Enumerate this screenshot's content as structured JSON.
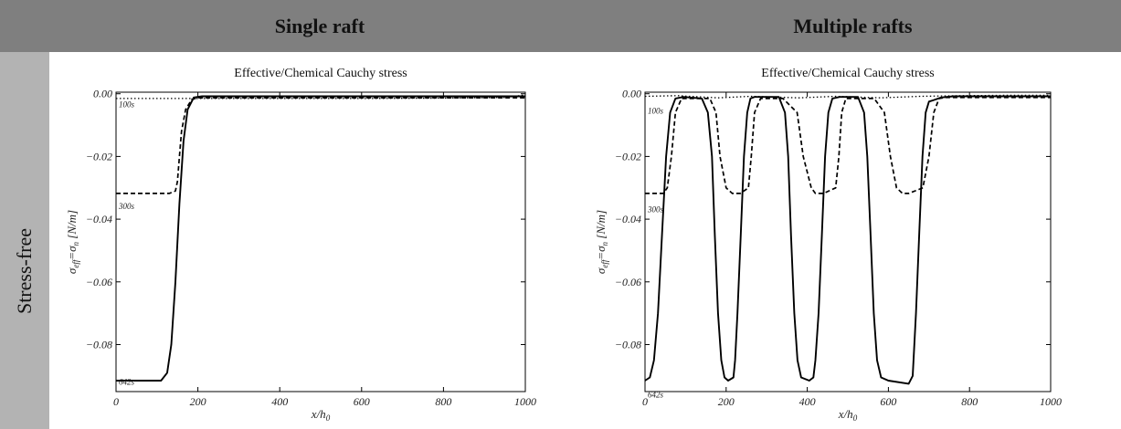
{
  "header": {
    "single_title": "Single raft",
    "multi_title": "Multiple rafts"
  },
  "row": {
    "label": "Stress-free"
  },
  "chart_data": [
    {
      "type": "line",
      "title": "Effective/Chemical Cauchy stress",
      "xlabel": "x/h",
      "xlabel_sub": "0",
      "ylabel": "σ",
      "ylabel_sub1": "eff",
      "ylabel_mid": "=σ",
      "ylabel_sub2": "n",
      "ylabel_unit": " [N/m]",
      "xlim": [
        0,
        1000
      ],
      "ylim": [
        -0.095,
        0.0005
      ],
      "xticks": [
        0,
        200,
        400,
        600,
        800,
        1000
      ],
      "xtick_labels": [
        "0",
        "200",
        "400",
        "600",
        "800",
        "1000"
      ],
      "yticks": [
        0.0,
        -0.02,
        -0.04,
        -0.06,
        -0.08
      ],
      "ytick_labels": [
        "0.00",
        "−0.02",
        "−0.04",
        "−0.06",
        "−0.08"
      ],
      "grid": false,
      "time_labels": [
        {
          "text": "100s",
          "y": -0.002
        },
        {
          "text": "300s",
          "y": -0.0345
        },
        {
          "text": "642s",
          "y": -0.0905
        }
      ],
      "series": [
        {
          "style": "dotted",
          "x": [
            0,
            200,
            400,
            600,
            800,
            950,
            975,
            990,
            1000
          ],
          "y": [
            -0.0015,
            -0.0015,
            -0.0015,
            -0.0015,
            -0.0014,
            -0.0012,
            -0.0008,
            -0.0005,
            -0.0004
          ]
        },
        {
          "style": "dashed",
          "x": [
            0,
            130,
            145,
            150,
            155,
            160,
            170,
            185,
            200,
            400,
            600,
            800,
            1000
          ],
          "y": [
            -0.0318,
            -0.0318,
            -0.031,
            -0.028,
            -0.02,
            -0.012,
            -0.005,
            -0.0018,
            -0.0013,
            -0.0013,
            -0.0013,
            -0.0013,
            -0.0013
          ]
        },
        {
          "style": "solid",
          "x": [
            0,
            110,
            125,
            135,
            145,
            155,
            165,
            175,
            190,
            210,
            400,
            600,
            800,
            1000
          ],
          "y": [
            -0.0915,
            -0.0915,
            -0.089,
            -0.08,
            -0.06,
            -0.035,
            -0.015,
            -0.005,
            -0.0012,
            -0.0008,
            -0.0008,
            -0.0008,
            -0.0008,
            -0.0008
          ]
        }
      ]
    },
    {
      "type": "line",
      "title": "Effective/Chemical Cauchy stress",
      "xlabel": "x/h",
      "xlabel_sub": "0",
      "ylabel": "σ",
      "ylabel_sub1": "eff",
      "ylabel_mid": "=σ",
      "ylabel_sub2": "n",
      "ylabel_unit": " [N/m]",
      "xlim": [
        0,
        1000
      ],
      "ylim": [
        -0.095,
        0.0005
      ],
      "xticks": [
        0,
        200,
        400,
        600,
        800,
        1000
      ],
      "xtick_labels": [
        "0",
        "200",
        "400",
        "600",
        "800",
        "1000"
      ],
      "yticks": [
        0.0,
        -0.02,
        -0.04,
        -0.06,
        -0.08
      ],
      "ytick_labels": [
        "0.00",
        "−0.02",
        "−0.04",
        "−0.06",
        "−0.08"
      ],
      "grid": false,
      "time_labels": [
        {
          "text": "100s",
          "y": -0.004
        },
        {
          "text": "300s",
          "y": -0.0355
        },
        {
          "text": "642s",
          "y": -0.0945
        }
      ],
      "series": [
        {
          "style": "dotted",
          "x": [
            0,
            80,
            180,
            260,
            380,
            470,
            580,
            680,
            780,
            900,
            1000
          ],
          "y": [
            -0.0008,
            -0.0006,
            -0.0013,
            -0.0008,
            -0.0013,
            -0.0008,
            -0.0013,
            -0.0008,
            -0.0006,
            -0.0005,
            -0.0005
          ]
        },
        {
          "style": "dashed",
          "x": [
            0,
            45,
            55,
            65,
            75,
            90,
            160,
            175,
            185,
            200,
            215,
            235,
            255,
            262,
            270,
            285,
            300,
            340,
            375,
            390,
            410,
            420,
            440,
            470,
            478,
            485,
            495,
            510,
            565,
            590,
            605,
            620,
            635,
            650,
            685,
            700,
            712,
            725,
            740,
            760,
            800,
            1000
          ],
          "y": [
            -0.0318,
            -0.0318,
            -0.03,
            -0.02,
            -0.006,
            -0.0015,
            -0.0015,
            -0.006,
            -0.02,
            -0.03,
            -0.0318,
            -0.0318,
            -0.03,
            -0.02,
            -0.006,
            -0.0015,
            -0.0015,
            -0.0015,
            -0.006,
            -0.02,
            -0.03,
            -0.0318,
            -0.0318,
            -0.03,
            -0.02,
            -0.006,
            -0.0015,
            -0.0015,
            -0.0015,
            -0.006,
            -0.02,
            -0.03,
            -0.0318,
            -0.0318,
            -0.03,
            -0.02,
            -0.006,
            -0.0015,
            -0.0012,
            -0.0012,
            -0.0012,
            -0.0012
          ]
        },
        {
          "style": "solid",
          "x": [
            0,
            12,
            22,
            32,
            42,
            52,
            62,
            75,
            95,
            140,
            155,
            165,
            172,
            180,
            188,
            196,
            205,
            218,
            222,
            228,
            236,
            244,
            252,
            260,
            270,
            285,
            330,
            345,
            353,
            360,
            368,
            376,
            385,
            405,
            415,
            420,
            428,
            436,
            444,
            452,
            462,
            480,
            525,
            540,
            548,
            556,
            564,
            572,
            582,
            600,
            650,
            660,
            668,
            676,
            684,
            692,
            700,
            712,
            730,
            760,
            1000
          ],
          "y": [
            -0.0915,
            -0.0905,
            -0.085,
            -0.07,
            -0.045,
            -0.02,
            -0.006,
            -0.0015,
            -0.001,
            -0.0015,
            -0.006,
            -0.02,
            -0.045,
            -0.07,
            -0.085,
            -0.0905,
            -0.0915,
            -0.0905,
            -0.085,
            -0.07,
            -0.045,
            -0.02,
            -0.006,
            -0.0015,
            -0.001,
            -0.001,
            -0.001,
            -0.006,
            -0.02,
            -0.045,
            -0.07,
            -0.085,
            -0.0905,
            -0.0915,
            -0.0905,
            -0.085,
            -0.07,
            -0.045,
            -0.02,
            -0.006,
            -0.0015,
            -0.001,
            -0.001,
            -0.006,
            -0.02,
            -0.045,
            -0.07,
            -0.085,
            -0.0905,
            -0.0915,
            -0.0925,
            -0.09,
            -0.07,
            -0.045,
            -0.02,
            -0.006,
            -0.0025,
            -0.002,
            -0.0012,
            -0.0008,
            -0.0008
          ]
        }
      ]
    }
  ]
}
